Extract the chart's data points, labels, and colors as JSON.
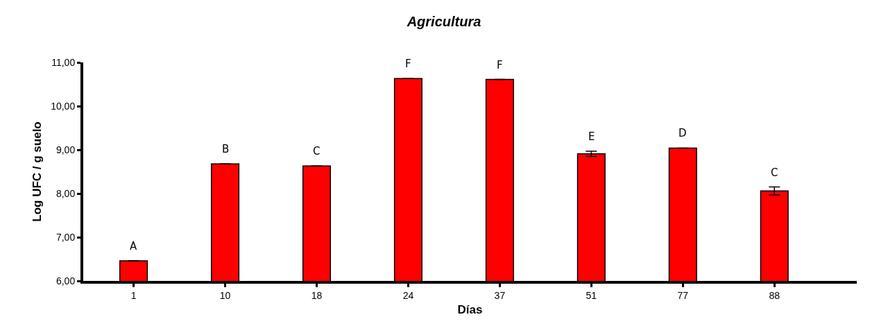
{
  "chart_data": {
    "type": "bar",
    "title": "Agricultura",
    "xlabel": "Días",
    "ylabel": "Log UFC / g suelo",
    "categories": [
      "1",
      "10",
      "18",
      "24",
      "37",
      "51",
      "77",
      "88"
    ],
    "values": [
      6.46,
      8.68,
      8.63,
      10.63,
      10.61,
      8.91,
      9.04,
      8.06
    ],
    "errors": [
      null,
      null,
      null,
      null,
      null,
      0.06,
      null,
      0.09
    ],
    "color": "#ff0000",
    "ylim": [
      6,
      11
    ],
    "yticks": [
      {
        "value": 6,
        "label": "6,00"
      },
      {
        "value": 7,
        "label": "7,00"
      },
      {
        "value": 8,
        "label": "8,00"
      },
      {
        "value": 9,
        "label": "9,00"
      },
      {
        "value": 10,
        "label": "10,00"
      },
      {
        "value": 11,
        "label": "11,00"
      }
    ],
    "annotations": [
      {
        "text": "A",
        "x": "1",
        "y": 6.46
      },
      {
        "text": "B",
        "x": "10",
        "y": 8.68
      },
      {
        "text": "C",
        "x": "18",
        "y": 8.63
      },
      {
        "text": "F",
        "x": "24",
        "y": 10.63
      },
      {
        "text": "F",
        "x": "37",
        "y": 10.61
      },
      {
        "text": "E",
        "x": "51",
        "y": 8.97
      },
      {
        "text": "D",
        "x": "77",
        "y": 9.04
      },
      {
        "text": "C",
        "x": "88",
        "y": 8.15
      }
    ],
    "grid": false,
    "legend": false
  }
}
